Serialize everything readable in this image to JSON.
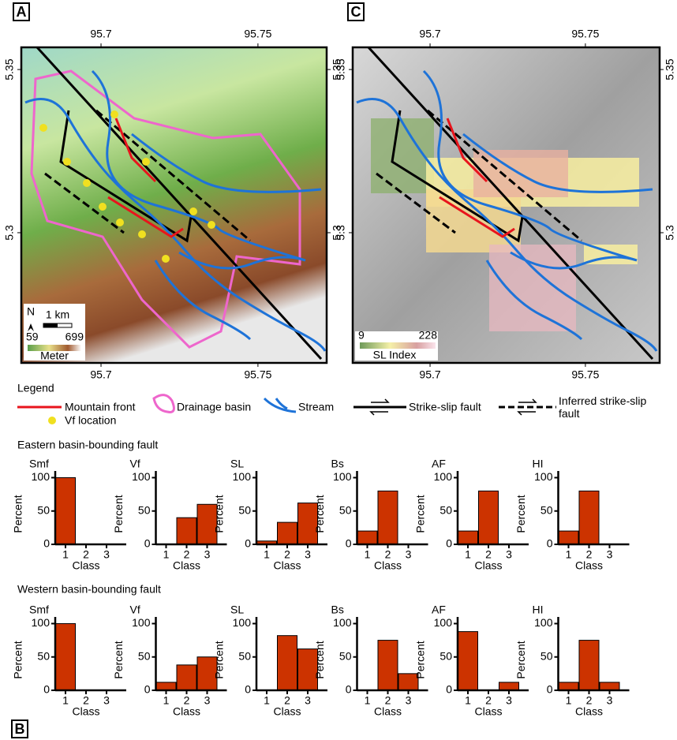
{
  "panels": {
    "a": "A",
    "b": "B",
    "c": "C"
  },
  "maps": [
    {
      "xlim": [
        95.6746,
        95.7719
      ],
      "ylim": [
        5.2601,
        5.3568
      ],
      "xticks": [
        95.7,
        95.75
      ],
      "yticks": [
        5.35,
        5.3
      ],
      "north": "N",
      "scale_label": "1 km",
      "colorbar_range": [
        59,
        699
      ],
      "colorbar_title": "Meter"
    },
    {
      "xlim": [
        95.6751,
        95.7739
      ],
      "ylim": [
        5.2601,
        5.3568
      ],
      "xticks": [
        95.7,
        95.75
      ],
      "yticks": [
        5.35,
        5.3
      ],
      "colorbar_range": [
        9,
        228
      ],
      "colorbar_title": "SL Index"
    }
  ],
  "legend": {
    "title": "Legend",
    "items": [
      "Mountain front",
      "Vf location",
      "Drainage basin",
      "Stream",
      "Strike-slip fault",
      "Inferred strike-slip fault"
    ]
  },
  "sections": [
    "Eastern basin-bounding fault",
    "Western basin-bounding fault"
  ],
  "chart_data": [
    {
      "type": "bar",
      "title": "Smf",
      "categories": [
        "1",
        "2",
        "3"
      ],
      "values": [
        100,
        0,
        0
      ],
      "color": "#cc3300",
      "ylim": [
        0,
        110
      ],
      "yticks": [
        0,
        50,
        100
      ],
      "xlabel": "Class",
      "ylabel": "Percent"
    },
    {
      "type": "bar",
      "title": "Vf",
      "categories": [
        "1",
        "2",
        "3"
      ],
      "values": [
        0,
        40,
        60
      ],
      "color": "#cc3300",
      "ylim": [
        0,
        110
      ],
      "yticks": [
        0,
        50,
        100
      ],
      "xlabel": "Class",
      "ylabel": "Percent"
    },
    {
      "type": "bar",
      "title": "SL",
      "categories": [
        "1",
        "2",
        "3"
      ],
      "values": [
        5,
        33,
        62
      ],
      "color": "#cc3300",
      "ylim": [
        0,
        110
      ],
      "yticks": [
        0,
        50,
        100
      ],
      "xlabel": "Class",
      "ylabel": "Percent"
    },
    {
      "type": "bar",
      "title": "Bs",
      "categories": [
        "1",
        "2",
        "3"
      ],
      "values": [
        20,
        80,
        0
      ],
      "color": "#cc3300",
      "ylim": [
        0,
        110
      ],
      "yticks": [
        0,
        50,
        100
      ],
      "xlabel": "Class",
      "ylabel": "Percent"
    },
    {
      "type": "bar",
      "title": "AF",
      "categories": [
        "1",
        "2",
        "3"
      ],
      "values": [
        20,
        80,
        0
      ],
      "color": "#cc3300",
      "ylim": [
        0,
        110
      ],
      "yticks": [
        0,
        50,
        100
      ],
      "xlabel": "Class",
      "ylabel": "Percent"
    },
    {
      "type": "bar",
      "title": "HI",
      "categories": [
        "1",
        "2",
        "3"
      ],
      "values": [
        20,
        80,
        0
      ],
      "color": "#cc3300",
      "ylim": [
        0,
        110
      ],
      "yticks": [
        0,
        50,
        100
      ],
      "xlabel": "Class",
      "ylabel": "Percent"
    },
    {
      "type": "bar",
      "title": "Smf",
      "categories": [
        "1",
        "2",
        "3"
      ],
      "values": [
        100,
        0,
        0
      ],
      "color": "#cc3300",
      "ylim": [
        0,
        110
      ],
      "yticks": [
        0,
        50,
        100
      ],
      "xlabel": "Class",
      "ylabel": "Percent"
    },
    {
      "type": "bar",
      "title": "Vf",
      "categories": [
        "1",
        "2",
        "3"
      ],
      "values": [
        12,
        38,
        50
      ],
      "color": "#cc3300",
      "ylim": [
        0,
        110
      ],
      "yticks": [
        0,
        50,
        100
      ],
      "xlabel": "Class",
      "ylabel": "Percent"
    },
    {
      "type": "bar",
      "title": "SL",
      "categories": [
        "1",
        "2",
        "3"
      ],
      "values": [
        0,
        82,
        62
      ],
      "color": "#cc3300",
      "ylim": [
        0,
        110
      ],
      "yticks": [
        0,
        50,
        100
      ],
      "xlabel": "Class",
      "ylabel": "Percent"
    },
    {
      "type": "bar",
      "title": "Bs",
      "categories": [
        "1",
        "2",
        "3"
      ],
      "values": [
        0,
        75,
        25
      ],
      "color": "#cc3300",
      "ylim": [
        0,
        110
      ],
      "yticks": [
        0,
        50,
        100
      ],
      "xlabel": "Class",
      "ylabel": "Percent"
    },
    {
      "type": "bar",
      "title": "AF",
      "categories": [
        "1",
        "2",
        "3"
      ],
      "values": [
        88,
        0,
        12
      ],
      "color": "#cc3300",
      "ylim": [
        0,
        110
      ],
      "yticks": [
        0,
        50,
        100
      ],
      "xlabel": "Class",
      "ylabel": "Percent"
    },
    {
      "type": "bar",
      "title": "HI",
      "categories": [
        "1",
        "2",
        "3"
      ],
      "values": [
        12,
        75,
        12
      ],
      "color": "#cc3300",
      "ylim": [
        0,
        110
      ],
      "yticks": [
        0,
        50,
        100
      ],
      "xlabel": "Class",
      "ylabel": "Percent"
    }
  ]
}
